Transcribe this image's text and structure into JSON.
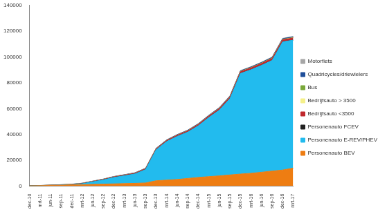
{
  "chart_data": {
    "type": "area",
    "stacked": true,
    "grid": false,
    "legend": "right",
    "categories": [
      "dec-10",
      "mrt-11",
      "jun-11",
      "sep-11",
      "dec-11",
      "mrt-12",
      "jun-12",
      "sep-12",
      "dec-12",
      "mrt-13",
      "jun-13",
      "sep-13",
      "dec-13",
      "mrt-14",
      "jun-14",
      "sep-14",
      "dec-14",
      "mrt-15",
      "jun-15",
      "sep-15",
      "dec-15",
      "mrt-16",
      "jun-16",
      "sep-16",
      "dec-16",
      "mrt-17"
    ],
    "ylim": [
      0,
      140000
    ],
    "yticks": [
      0,
      20000,
      40000,
      60000,
      80000,
      100000,
      120000,
      140000
    ],
    "series": [
      {
        "name": "Personenauto BEV",
        "color": "#ee7d12",
        "values": [
          200,
          400,
          600,
          800,
          1000,
          1200,
          1400,
          1600,
          1800,
          2000,
          2200,
          2500,
          4200,
          4700,
          5200,
          6000,
          6800,
          7400,
          8000,
          8700,
          9400,
          10000,
          10800,
          11700,
          12500,
          14000
        ]
      },
      {
        "name": "Personenauto E-REV/PHEV",
        "color": "#22bbee",
        "values": [
          0,
          0,
          50,
          100,
          200,
          700,
          2000,
          3300,
          5000,
          6100,
          7300,
          10400,
          24000,
          29900,
          33400,
          35900,
          40000,
          45800,
          51000,
          59200,
          77900,
          80200,
          82800,
          85700,
          99300,
          99100
        ]
      },
      {
        "name": "Personenauto FCEV",
        "color": "#222222",
        "values": [
          0,
          0,
          0,
          0,
          0,
          0,
          0,
          0,
          0,
          0,
          0,
          0,
          0,
          0,
          0,
          0,
          0,
          0,
          10,
          10,
          20,
          20,
          20,
          30,
          30,
          40
        ]
      },
      {
        "name": "Bedrijfsauto <3500",
        "color": "#c0282d",
        "values": [
          50,
          80,
          120,
          160,
          200,
          260,
          320,
          380,
          440,
          500,
          560,
          620,
          700,
          780,
          860,
          940,
          1020,
          1100,
          1180,
          1260,
          1340,
          1400,
          1460,
          1520,
          1580,
          1650
        ]
      },
      {
        "name": "Bedrijfsauto > 3500",
        "color": "#f5f08a",
        "values": [
          0,
          0,
          0,
          0,
          0,
          0,
          10,
          10,
          10,
          20,
          20,
          20,
          30,
          30,
          40,
          40,
          50,
          50,
          60,
          60,
          70,
          70,
          80,
          80,
          90,
          100
        ]
      },
      {
        "name": "Bus",
        "color": "#7aa83a",
        "values": [
          10,
          10,
          10,
          20,
          20,
          30,
          30,
          40,
          40,
          50,
          50,
          60,
          70,
          80,
          90,
          100,
          110,
          120,
          130,
          150,
          170,
          190,
          210,
          230,
          250,
          270
        ]
      },
      {
        "name": "Quadricycles/driewielers",
        "color": "#1f4e9a",
        "values": [
          50,
          60,
          70,
          80,
          100,
          120,
          140,
          160,
          180,
          200,
          220,
          240,
          260,
          280,
          300,
          320,
          340,
          360,
          380,
          400,
          420,
          440,
          460,
          480,
          500,
          520
        ]
      },
      {
        "name": "Motorfiets",
        "color": "#a6a6a6",
        "values": [
          20,
          30,
          40,
          50,
          60,
          70,
          80,
          90,
          100,
          110,
          120,
          130,
          140,
          150,
          160,
          170,
          180,
          190,
          200,
          210,
          220,
          230,
          240,
          250,
          260,
          280
        ]
      }
    ]
  }
}
